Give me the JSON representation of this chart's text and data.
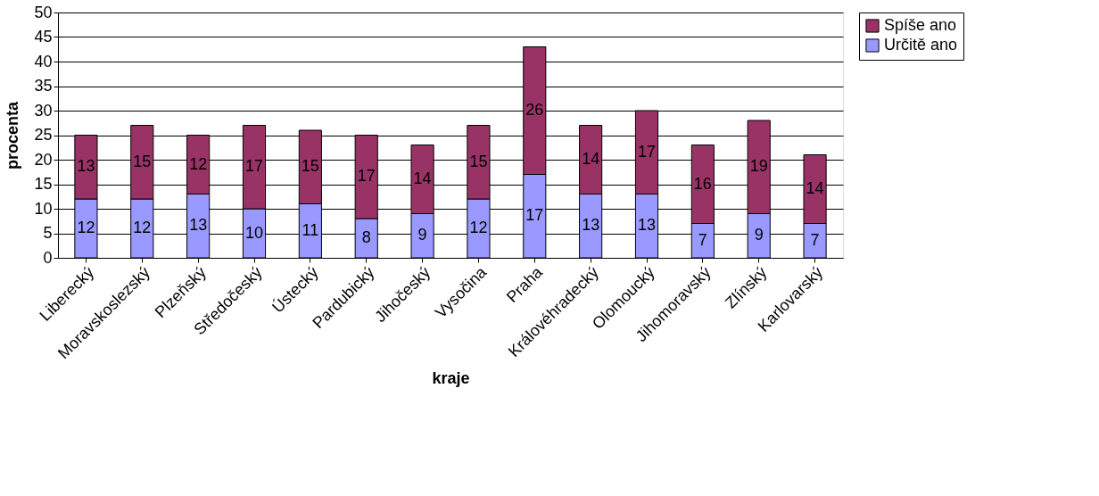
{
  "chart_data": {
    "type": "bar",
    "stacked": true,
    "xlabel": "kraje",
    "ylabel": "procenta",
    "categories": [
      "Liberecký",
      "Moravskoslezský",
      "Plzeňský",
      "Středočeský",
      "Ústecký",
      "Pardubický",
      "Jihočeský",
      "Vysočina",
      "Praha",
      "Královéhradecký",
      "Olomoucký",
      "Jihomoravský",
      "Zlínský",
      "Karlovarský"
    ],
    "series": [
      {
        "name": "Určitě ano",
        "color": "#9999ff",
        "values": [
          12,
          12,
          13,
          10,
          11,
          8,
          9,
          12,
          17,
          13,
          13,
          7,
          9,
          7
        ]
      },
      {
        "name": "Spíše ano",
        "color": "#993366",
        "values": [
          13,
          15,
          12,
          17,
          15,
          17,
          14,
          15,
          26,
          14,
          17,
          16,
          19,
          14
        ]
      }
    ],
    "ylim": [
      0,
      50
    ],
    "yticks": [
      0,
      5,
      10,
      15,
      20,
      25,
      30,
      35,
      40,
      45,
      50
    ],
    "grid": "y",
    "legend": "right",
    "data_labels": true
  }
}
